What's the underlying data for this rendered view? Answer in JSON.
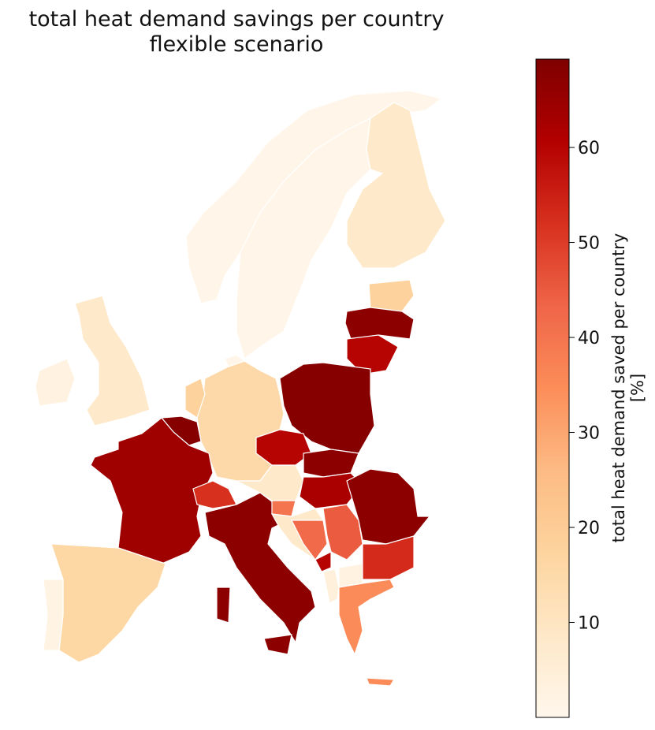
{
  "chart_data": {
    "type": "choropleth",
    "title": [
      "total heat demand savings per country",
      "flexible scenario"
    ],
    "values": [
      1,
      1,
      8,
      18,
      67,
      60,
      68,
      15,
      1,
      18,
      68,
      64,
      8,
      3,
      16,
      2,
      52,
      67,
      8,
      60,
      67,
      62,
      40,
      8,
      42,
      45,
      60,
      3,
      4,
      67,
      53,
      35
    ],
    "colormap": [
      "#fff7ec",
      "#fee8c8",
      "#fdd49e",
      "#fdbb84",
      "#fc8d59",
      "#ef6548",
      "#d7301f",
      "#b30000",
      "#7f0000"
    ],
    "clim": [
      0,
      69.3
    ],
    "colorbar_ticks": [
      10,
      20,
      30,
      40,
      50,
      60
    ],
    "colorbar_label": [
      "total heat demand saved per country",
      "[%]"
    ]
  }
}
